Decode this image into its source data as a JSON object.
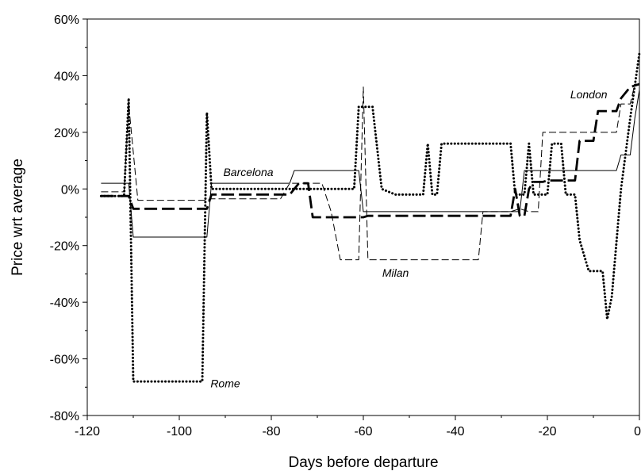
{
  "chart_data": {
    "type": "line",
    "title": "",
    "xlabel": "Days before departure",
    "ylabel": "Price wrt average",
    "xlim": [
      -120,
      0
    ],
    "ylim": [
      -80,
      60
    ],
    "x_ticks": [
      -120,
      -100,
      -80,
      -60,
      -40,
      -20,
      0
    ],
    "x_tick_labels": [
      "-120",
      "-100",
      "-80",
      "-60",
      "-40",
      "-20",
      "0"
    ],
    "y_ticks": [
      -80,
      -60,
      -40,
      -20,
      0,
      20,
      40,
      60
    ],
    "y_tick_labels": [
      "-80%",
      "-60%",
      "-40%",
      "-20%",
      "0%",
      "20%",
      "40%",
      "60%"
    ],
    "grid": false,
    "legend": "none (series labelled inline)",
    "series": [
      {
        "name": "Barcelona",
        "style": "solid",
        "points": [
          [
            -117,
            2
          ],
          [
            -111,
            2
          ],
          [
            -110,
            -17
          ],
          [
            -94,
            -17
          ],
          [
            -93,
            2
          ],
          [
            -76,
            2
          ],
          [
            -75,
            6.5
          ],
          [
            -61,
            6.5
          ],
          [
            -60,
            -8
          ],
          [
            -26,
            -8
          ],
          [
            -25,
            6.5
          ],
          [
            -5,
            6.5
          ],
          [
            -4,
            12
          ],
          [
            -2,
            12
          ],
          [
            -1,
            25
          ],
          [
            0,
            35
          ]
        ]
      },
      {
        "name": "Milan",
        "style": "thin dashed",
        "points": [
          [
            -117,
            -1
          ],
          [
            -112,
            -1
          ],
          [
            -111,
            30
          ],
          [
            -109,
            -4
          ],
          [
            -94,
            -4
          ],
          [
            -93,
            -3.5
          ],
          [
            -78,
            -3.5
          ],
          [
            -76,
            2
          ],
          [
            -69,
            2
          ],
          [
            -67,
            -8
          ],
          [
            -65,
            -25
          ],
          [
            -61,
            -25
          ],
          [
            -60,
            36
          ],
          [
            -59,
            -25
          ],
          [
            -35,
            -25
          ],
          [
            -34,
            -8
          ],
          [
            -28,
            -8
          ],
          [
            -26,
            -7
          ],
          [
            -24,
            -8
          ],
          [
            -22,
            -8
          ],
          [
            -21,
            20
          ],
          [
            -5,
            20
          ],
          [
            -4,
            30
          ],
          [
            -2,
            30
          ],
          [
            -1,
            37
          ],
          [
            0,
            37
          ]
        ]
      },
      {
        "name": "London",
        "style": "bold dashed",
        "points": [
          [
            -117,
            -2.5
          ],
          [
            -112,
            -2.5
          ],
          [
            -111,
            -2.5
          ],
          [
            -110,
            -7
          ],
          [
            -94,
            -7
          ],
          [
            -93,
            -2
          ],
          [
            -76,
            -2
          ],
          [
            -74,
            2
          ],
          [
            -72,
            2
          ],
          [
            -71,
            -10
          ],
          [
            -60,
            -10
          ],
          [
            -59,
            -9.5
          ],
          [
            -28,
            -9.5
          ],
          [
            -27,
            0
          ],
          [
            -26,
            -9.5
          ],
          [
            -25,
            -9.5
          ],
          [
            -24,
            0
          ],
          [
            -23,
            2.5
          ],
          [
            -21,
            2.5
          ],
          [
            -20,
            3
          ],
          [
            -14,
            3
          ],
          [
            -13,
            17
          ],
          [
            -10,
            17
          ],
          [
            -9,
            27.5
          ],
          [
            -5,
            27.5
          ],
          [
            -4,
            32
          ],
          [
            -2,
            36
          ],
          [
            0,
            37
          ]
        ]
      },
      {
        "name": "Rome",
        "style": "dotted",
        "points": [
          [
            -117,
            -2.5
          ],
          [
            -112,
            -2.5
          ],
          [
            -111,
            32
          ],
          [
            -110,
            -68
          ],
          [
            -95,
            -68
          ],
          [
            -94,
            27
          ],
          [
            -93,
            0
          ],
          [
            -72,
            0
          ],
          [
            -70,
            0
          ],
          [
            -62,
            0
          ],
          [
            -61,
            29
          ],
          [
            -58,
            29
          ],
          [
            -56,
            0
          ],
          [
            -53,
            -2
          ],
          [
            -47,
            -2
          ],
          [
            -46,
            16
          ],
          [
            -45,
            -2
          ],
          [
            -44,
            -2
          ],
          [
            -43,
            16
          ],
          [
            -28,
            16
          ],
          [
            -27,
            -2
          ],
          [
            -25,
            -2
          ],
          [
            -24,
            16
          ],
          [
            -23,
            -2
          ],
          [
            -20,
            -2
          ],
          [
            -19,
            16
          ],
          [
            -17,
            16
          ],
          [
            -16,
            -2
          ],
          [
            -14,
            -2
          ],
          [
            -13,
            -18
          ],
          [
            -11,
            -29
          ],
          [
            -8,
            -29
          ],
          [
            -7,
            -46
          ],
          [
            -6,
            -38
          ],
          [
            -4,
            0
          ],
          [
            -2,
            25
          ],
          [
            0,
            48
          ]
        ]
      }
    ],
    "annotations": [
      "Barcelona",
      "Milan",
      "London",
      "Rome"
    ]
  }
}
